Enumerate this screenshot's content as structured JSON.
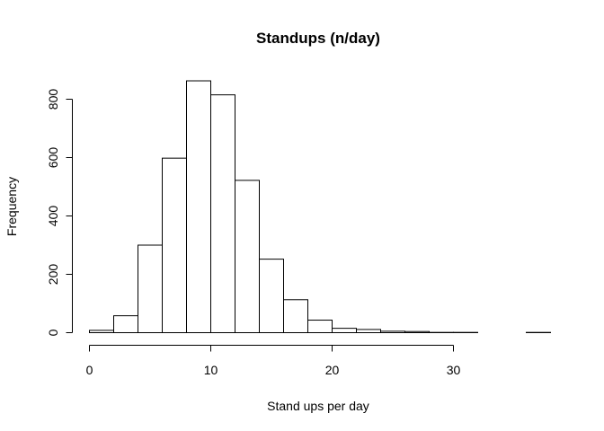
{
  "chart_data": {
    "type": "bar",
    "subtype": "histogram",
    "title": "Standups (n/day)",
    "xlabel": "Stand ups per day",
    "ylabel": "Frequency",
    "bin_width": 2,
    "bins": [
      {
        "x0": 0,
        "x1": 2,
        "count": 8
      },
      {
        "x0": 2,
        "x1": 4,
        "count": 58
      },
      {
        "x0": 4,
        "x1": 6,
        "count": 300
      },
      {
        "x0": 6,
        "x1": 8,
        "count": 598
      },
      {
        "x0": 8,
        "x1": 10,
        "count": 863
      },
      {
        "x0": 10,
        "x1": 12,
        "count": 815
      },
      {
        "x0": 12,
        "x1": 14,
        "count": 522
      },
      {
        "x0": 14,
        "x1": 16,
        "count": 252
      },
      {
        "x0": 16,
        "x1": 18,
        "count": 113
      },
      {
        "x0": 18,
        "x1": 20,
        "count": 43
      },
      {
        "x0": 20,
        "x1": 22,
        "count": 15
      },
      {
        "x0": 22,
        "x1": 24,
        "count": 11
      },
      {
        "x0": 24,
        "x1": 26,
        "count": 5
      },
      {
        "x0": 26,
        "x1": 28,
        "count": 4
      },
      {
        "x0": 28,
        "x1": 30,
        "count": 1
      },
      {
        "x0": 30,
        "x1": 32,
        "count": 1
      },
      {
        "x0": 32,
        "x1": 34,
        "count": 0
      },
      {
        "x0": 34,
        "x1": 36,
        "count": 0
      },
      {
        "x0": 36,
        "x1": 38,
        "count": 1
      }
    ],
    "xlim": [
      0,
      38
    ],
    "ylim": [
      0,
      863
    ],
    "x_ticks": [
      0,
      10,
      20,
      30
    ],
    "y_ticks": [
      0,
      200,
      400,
      600,
      800
    ],
    "grid": false,
    "legend": "none",
    "colors": {
      "bar_fill": "#ffffff",
      "bar_stroke": "#000000",
      "axis": "#000000"
    }
  }
}
